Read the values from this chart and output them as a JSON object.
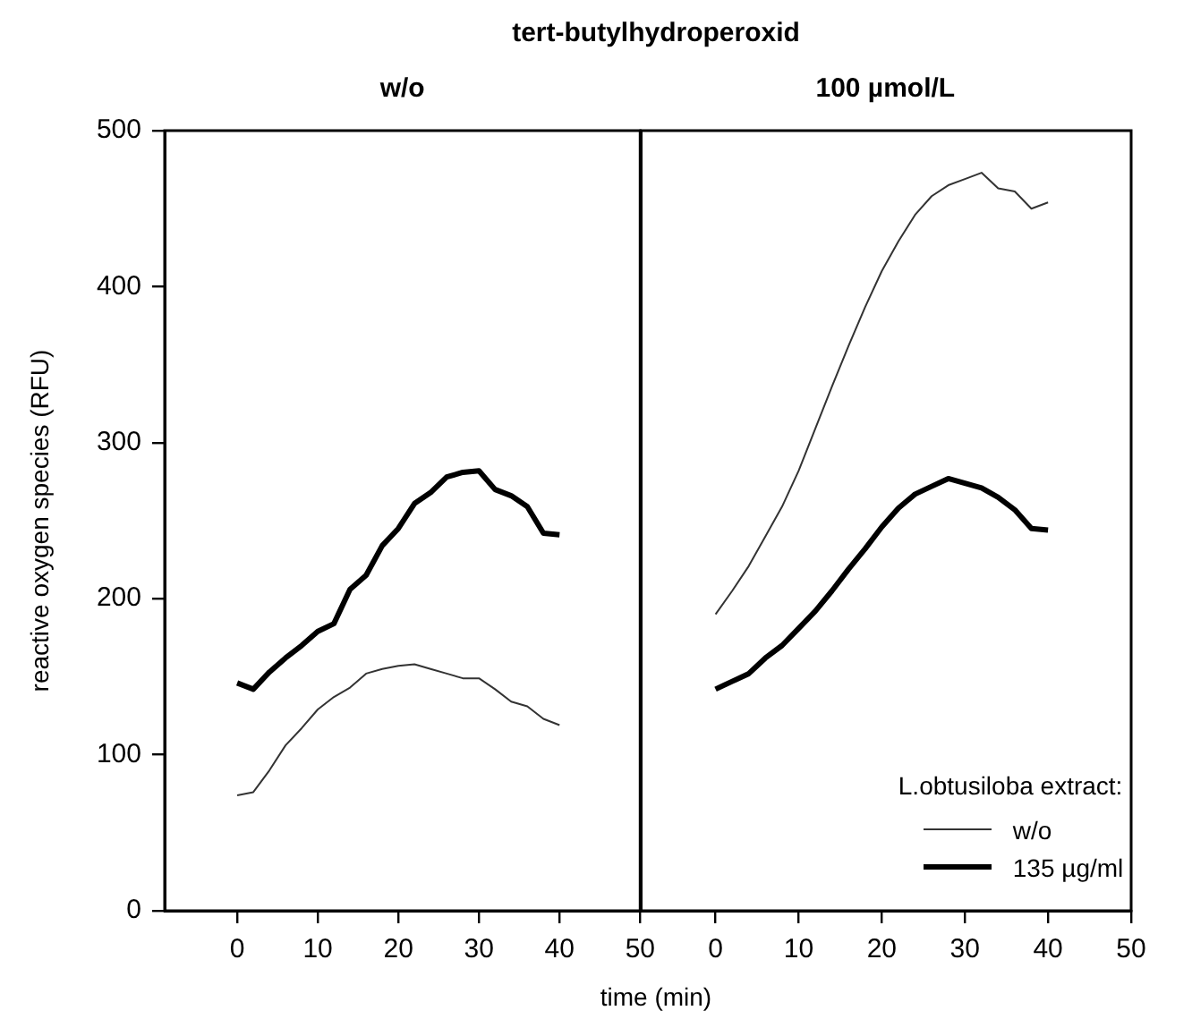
{
  "chart_data": [
    {
      "type": "line",
      "title": "tert-butylhydroperoxid",
      "subtitle": "w/o",
      "xlabel": "time (min)",
      "ylabel": "reactive oxygen species (RFU)",
      "marker": "none",
      "x": [
        0,
        2,
        4,
        6,
        8,
        10,
        12,
        14,
        16,
        18,
        20,
        22,
        24,
        26,
        28,
        30,
        32,
        34,
        36,
        38,
        40
      ],
      "series": [
        {
          "color": "#333333",
          "values": [
            74,
            76,
            90,
            106,
            117,
            129,
            137,
            143,
            152,
            155,
            157,
            158,
            155,
            152,
            149,
            149,
            142,
            134,
            131,
            123,
            119
          ]
        },
        {
          "color": "#000000",
          "values": [
            146,
            142,
            153,
            162,
            170,
            179,
            184,
            206,
            215,
            234,
            245,
            261,
            268,
            278,
            281,
            282,
            270,
            266,
            259,
            242,
            241
          ]
        }
      ],
      "xlim": [
        -9,
        50
      ],
      "xticks": [
        0,
        10,
        20,
        30,
        40,
        50
      ],
      "ylim": [
        0,
        500
      ],
      "yticks": [
        0,
        100,
        200,
        300,
        400,
        500
      ]
    },
    {
      "type": "line",
      "subtitle": "100 µmol/L",
      "marker": "none",
      "legend": "bottom right",
      "legend_title": "L.obtusiloba extract:",
      "tick_labels": "x",
      "x": [
        0,
        2,
        4,
        6,
        8,
        10,
        12,
        14,
        16,
        18,
        20,
        22,
        24,
        26,
        28,
        30,
        32,
        34,
        36,
        38,
        40
      ],
      "series": [
        {
          "name": "w/o",
          "color": "#333333",
          "values": [
            190,
            205,
            221,
            240,
            259,
            282,
            309,
            336,
            362,
            387,
            410,
            429,
            446,
            458,
            465,
            469,
            473,
            463,
            461,
            450,
            454
          ]
        },
        {
          "name": "135 µg/ml",
          "color": "#000000",
          "values": [
            142,
            147,
            152,
            162,
            170,
            181,
            192,
            205,
            219,
            232,
            246,
            258,
            267,
            272,
            277,
            274,
            271,
            265,
            257,
            245,
            244
          ]
        }
      ],
      "xlim": [
        -9,
        50
      ],
      "xticks": [
        0,
        10,
        20,
        30,
        40,
        50
      ],
      "ylim": [
        0,
        500
      ],
      "yticks": [
        0,
        100,
        200,
        300,
        400,
        500
      ]
    }
  ]
}
